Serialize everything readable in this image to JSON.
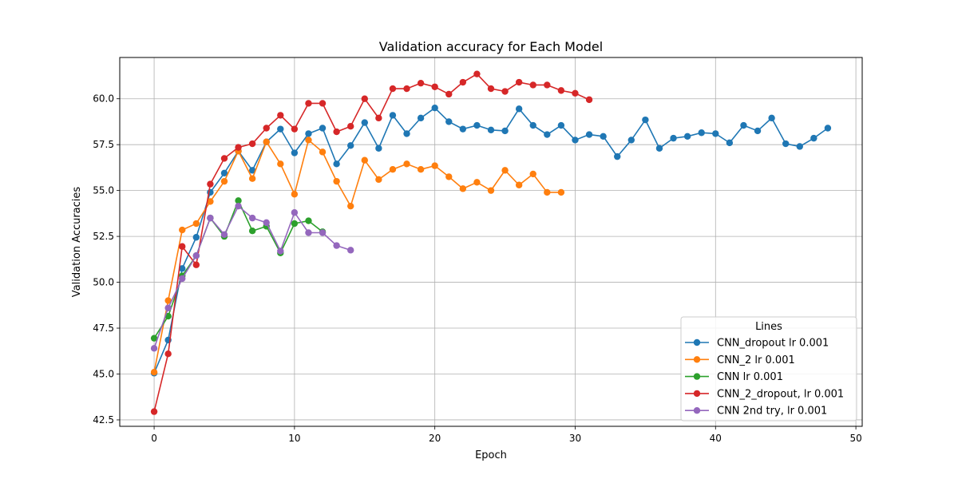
{
  "chart_data": {
    "type": "line",
    "title": "Validation accuracy for Each Model",
    "xlabel": "Epoch",
    "ylabel": "Validation Accuracies",
    "xlim": [
      -2.45,
      50.45
    ],
    "ylim": [
      42.15,
      62.25
    ],
    "xticks": [
      0,
      10,
      20,
      30,
      40,
      50
    ],
    "yticks": [
      42.5,
      45.0,
      47.5,
      50.0,
      52.5,
      55.0,
      57.5,
      60.0
    ],
    "xtick_labels": [
      "0",
      "10",
      "20",
      "30",
      "40",
      "50"
    ],
    "ytick_labels": [
      "42.5",
      "45.0",
      "47.5",
      "50.0",
      "52.5",
      "55.0",
      "57.5",
      "60.0"
    ],
    "grid": true,
    "legend": {
      "title": "Lines",
      "position": "lower-right"
    },
    "series": [
      {
        "name": "CNN_dropout lr 0.001",
        "color": "#1f77b4",
        "x": [
          0,
          1,
          2,
          3,
          4,
          5,
          6,
          7,
          8,
          9,
          10,
          11,
          12,
          13,
          14,
          15,
          16,
          17,
          18,
          19,
          20,
          21,
          22,
          23,
          24,
          25,
          26,
          27,
          28,
          29,
          30,
          31,
          32,
          33,
          34,
          35,
          36,
          37,
          38,
          39,
          40,
          41,
          42,
          43,
          44,
          45,
          46,
          47,
          48
        ],
        "y": [
          45.05,
          46.85,
          50.75,
          52.45,
          54.9,
          55.95,
          57.15,
          56.1,
          57.65,
          58.35,
          57.05,
          58.1,
          58.4,
          56.45,
          57.45,
          58.7,
          57.3,
          59.1,
          58.1,
          58.95,
          59.5,
          58.75,
          58.35,
          58.55,
          58.3,
          58.25,
          59.45,
          58.55,
          58.05,
          58.55,
          57.75,
          58.05,
          57.95,
          56.85,
          57.75,
          58.85,
          57.3,
          57.85,
          57.95,
          58.15,
          58.1,
          57.6,
          58.55,
          58.25,
          58.95,
          57.55,
          57.4,
          57.85,
          58.4
        ]
      },
      {
        "name": "CNN_2 lr 0.001",
        "color": "#ff7f0e",
        "x": [
          0,
          1,
          2,
          3,
          4,
          5,
          6,
          7,
          8,
          9,
          10,
          11,
          12,
          13,
          14,
          15,
          16,
          17,
          18,
          19,
          20,
          21,
          22,
          23,
          24,
          25,
          26,
          27,
          28,
          29
        ],
        "y": [
          45.1,
          49.0,
          52.85,
          53.2,
          54.4,
          55.5,
          57.15,
          55.65,
          57.65,
          56.45,
          54.8,
          57.75,
          57.1,
          55.5,
          54.15,
          56.65,
          55.6,
          56.15,
          56.45,
          56.15,
          56.35,
          55.75,
          55.1,
          55.45,
          55.0,
          56.1,
          55.3,
          55.9,
          54.9,
          54.9
        ]
      },
      {
        "name": "CNN lr 0.001",
        "color": "#2ca02c",
        "x": [
          0,
          1,
          2,
          3,
          4,
          5,
          6,
          7,
          8,
          9,
          10,
          11,
          12
        ],
        "y": [
          46.95,
          48.15,
          50.35,
          51.45,
          53.5,
          52.5,
          54.45,
          52.8,
          53.05,
          51.6,
          53.2,
          53.35,
          52.75
        ]
      },
      {
        "name": "CNN_2_dropout, lr 0.001",
        "color": "#d62728",
        "x": [
          0,
          1,
          2,
          3,
          4,
          5,
          6,
          7,
          8,
          9,
          10,
          11,
          12,
          13,
          14,
          15,
          16,
          17,
          18,
          19,
          20,
          21,
          22,
          23,
          24,
          25,
          26,
          27,
          28,
          29,
          30,
          31
        ],
        "y": [
          42.95,
          46.1,
          51.95,
          50.95,
          55.35,
          56.75,
          57.35,
          57.55,
          58.4,
          59.1,
          58.35,
          59.75,
          59.75,
          58.2,
          58.5,
          60.0,
          58.95,
          60.55,
          60.55,
          60.85,
          60.65,
          60.25,
          60.9,
          61.35,
          60.55,
          60.4,
          60.9,
          60.75,
          60.75,
          60.45,
          60.3,
          59.95
        ]
      },
      {
        "name": "CNN 2nd try, lr 0.001",
        "color": "#9467bd",
        "x": [
          0,
          1,
          2,
          3,
          4,
          5,
          6,
          7,
          8,
          9,
          10,
          11,
          12,
          13,
          14
        ],
        "y": [
          46.4,
          48.6,
          50.2,
          51.45,
          53.5,
          52.6,
          54.15,
          53.5,
          53.25,
          51.7,
          53.8,
          52.7,
          52.7,
          52.0,
          51.75
        ]
      }
    ]
  }
}
